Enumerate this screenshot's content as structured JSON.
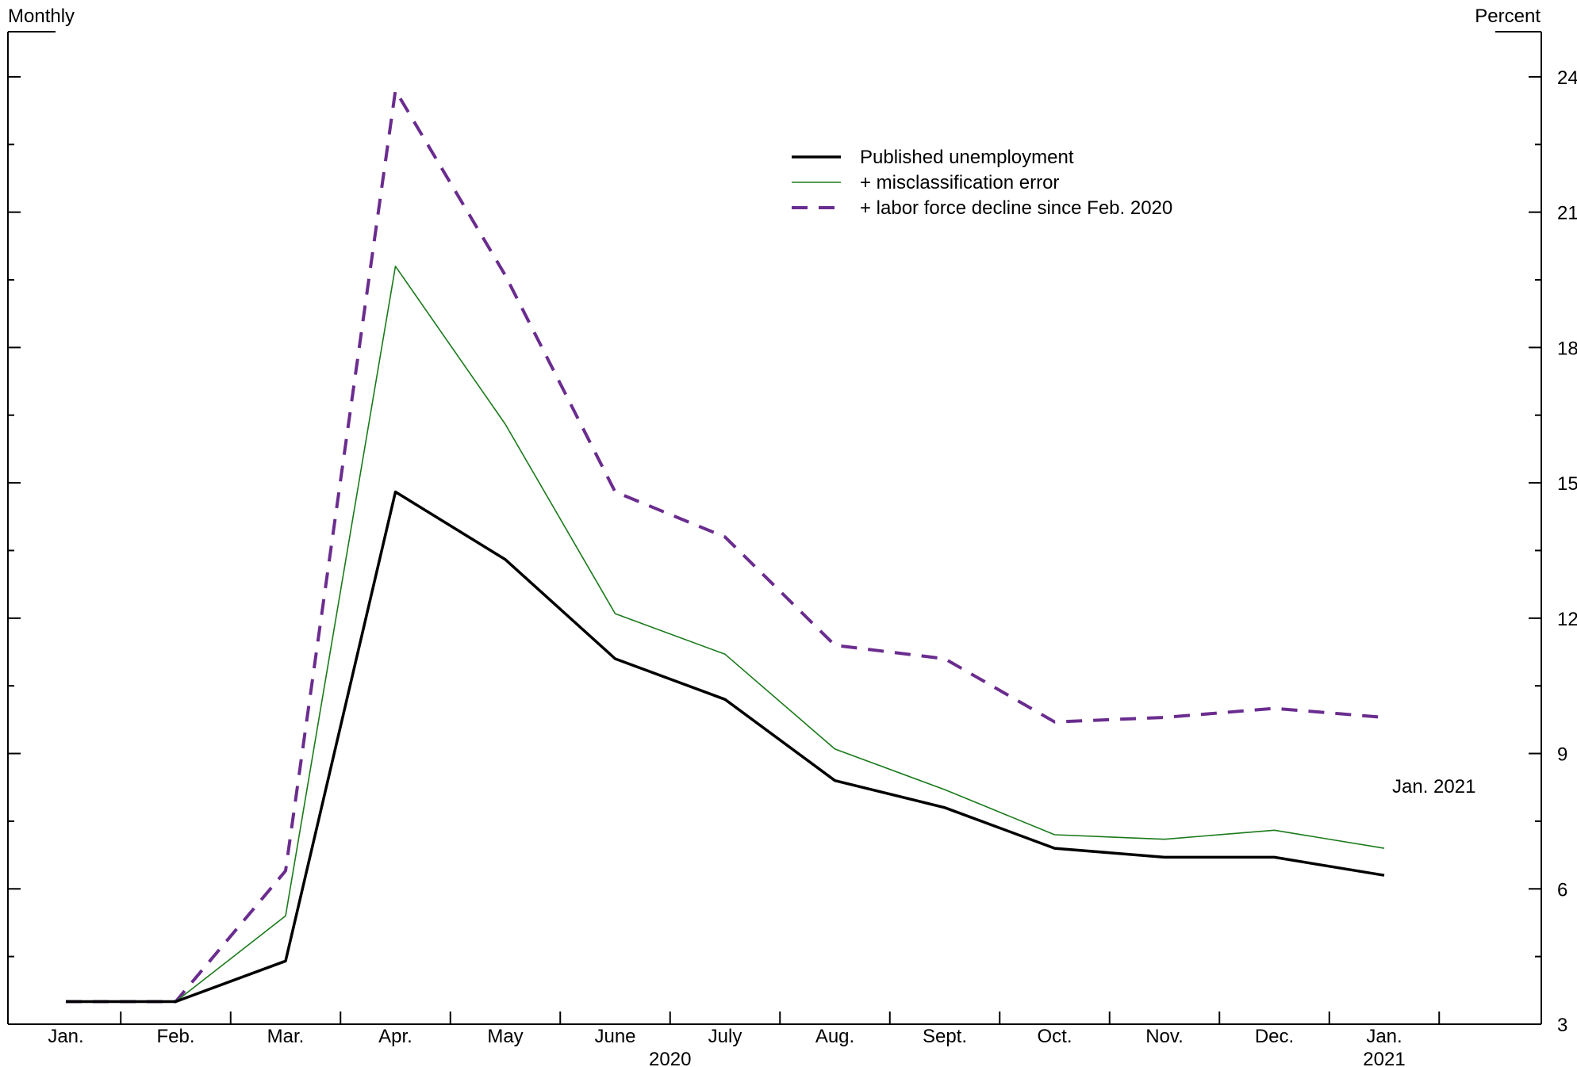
{
  "chart_data": {
    "type": "line",
    "frequency_label": "Monthly",
    "units_label": "Percent",
    "categories": [
      "Jan.",
      "Feb.",
      "Mar.",
      "Apr.",
      "May",
      "June",
      "July",
      "Aug.",
      "Sept.",
      "Oct.",
      "Nov.",
      "Dec.",
      "Jan."
    ],
    "year_labels": [
      {
        "label": "2020",
        "category_index": 5.5
      },
      {
        "label": "2021",
        "category_index": 12
      }
    ],
    "series": [
      {
        "name": "Published unemployment",
        "color": "#000000",
        "style": "solid-thick",
        "values": [
          3.5,
          3.5,
          4.4,
          14.8,
          13.3,
          11.1,
          10.2,
          8.4,
          7.8,
          6.9,
          6.7,
          6.7,
          6.3
        ]
      },
      {
        "name": "+ misclassification error",
        "color": "#1a7a1a",
        "style": "solid-thin",
        "values": [
          3.5,
          3.5,
          5.4,
          19.8,
          16.3,
          12.1,
          11.2,
          9.1,
          8.2,
          7.2,
          7.1,
          7.3,
          6.9
        ]
      },
      {
        "name": "+ labor force decline since Feb. 2020",
        "color": "#6a2c8e",
        "style": "dashed",
        "values": [
          3.5,
          3.5,
          6.4,
          23.7,
          19.6,
          14.8,
          13.8,
          11.4,
          11.1,
          9.7,
          9.8,
          10.0,
          9.8
        ]
      }
    ],
    "annotations": [
      "Jan. 2021"
    ],
    "ylim": [
      3,
      25
    ],
    "yticks": [
      3,
      6,
      9,
      12,
      15,
      18,
      21,
      24
    ],
    "ytick_labels": [
      "3",
      "6",
      "9",
      "12",
      "15",
      "18",
      "21",
      "24"
    ],
    "legend_position": "top-center",
    "grid": false
  }
}
